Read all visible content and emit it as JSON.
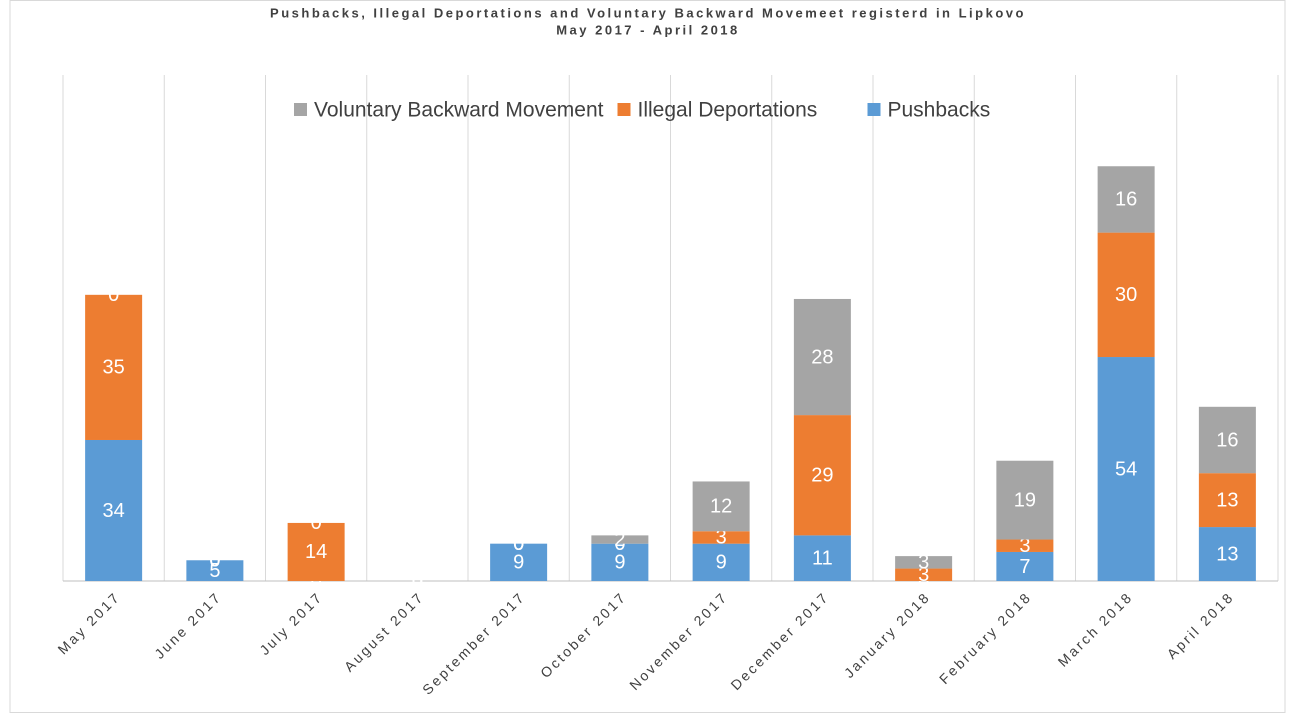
{
  "chart_data": {
    "type": "stacked_bar",
    "title": "Pushbacks, Illegal Deportations and Voluntary Backward Movemeet registerd in Lipkovo",
    "subtitle": "May 2017 - April 2018",
    "categories": [
      "May 2017",
      "June 2017",
      "July 2017",
      "August 2017",
      "September 2017",
      "October 2017",
      "November 2017",
      "December 2017",
      "January 2018",
      "February 2018",
      "March 2018",
      "April 2018"
    ],
    "series": [
      {
        "name": "Pushbacks",
        "color": "#5b9bd5",
        "values": [
          34,
          5,
          0,
          0,
          9,
          9,
          9,
          11,
          0,
          7,
          54,
          13
        ]
      },
      {
        "name": "Illegal Deportations",
        "color": "#ed7d31",
        "values": [
          35,
          0,
          14,
          0,
          0,
          0,
          3,
          29,
          3,
          3,
          30,
          13
        ]
      },
      {
        "name": "Voluntary Backward Movement",
        "color": "#a5a5a5",
        "values": [
          0,
          0,
          0,
          0,
          0,
          2,
          12,
          28,
          3,
          19,
          16,
          16
        ]
      }
    ],
    "ylim": [
      0,
      122
    ],
    "grid": true,
    "legend": "top"
  }
}
